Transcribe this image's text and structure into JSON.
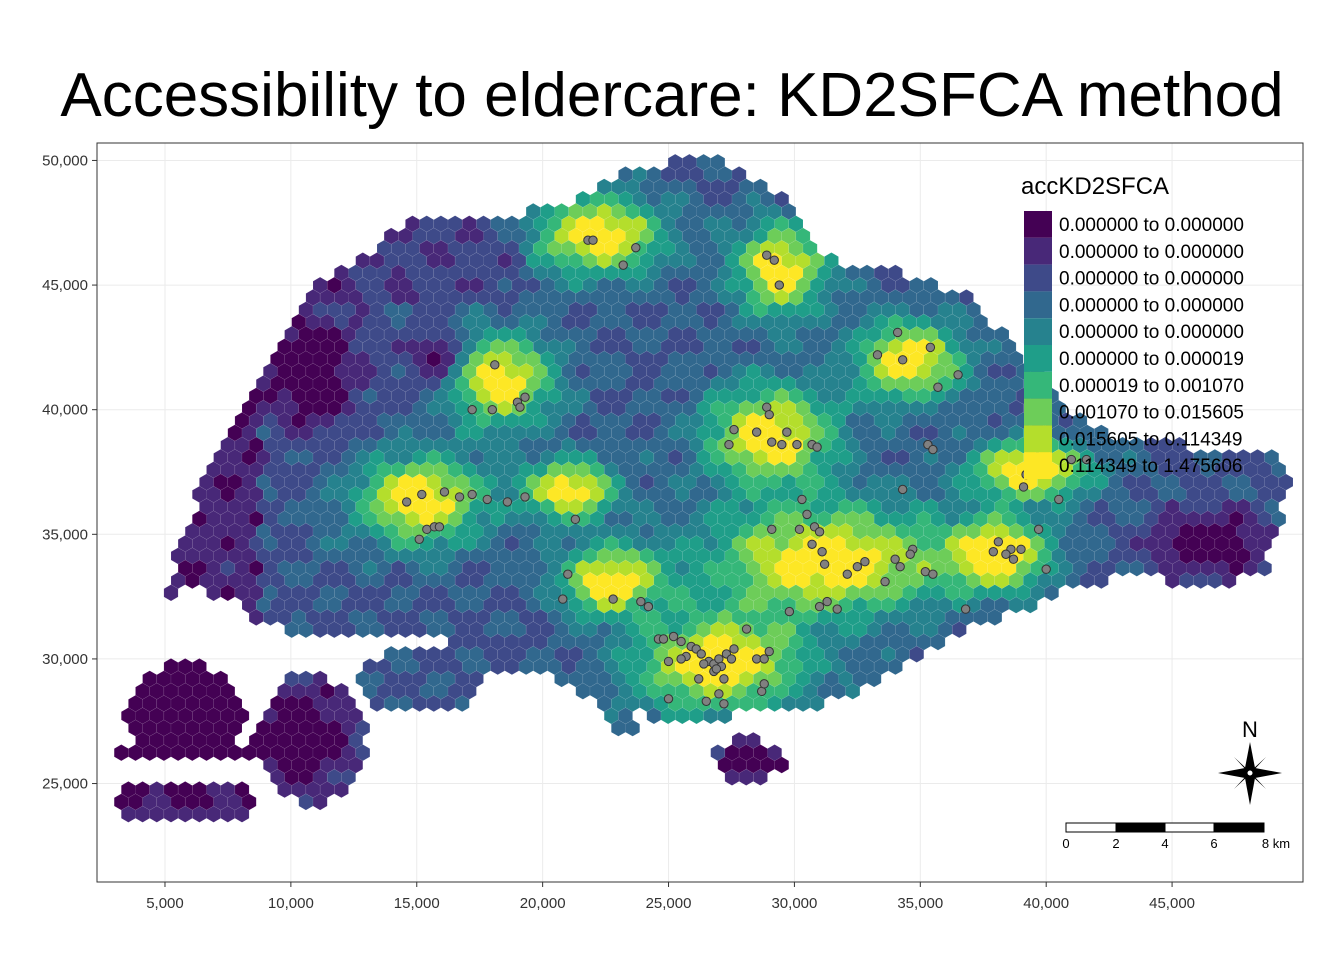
{
  "title": "Accessibility to eldercare: KD2SFCA method",
  "chart_data": {
    "type": "heatmap",
    "map_type": "hexagon grid choropleth",
    "x_ticks": [
      "5,000",
      "10,000",
      "15,000",
      "20,000",
      "25,000",
      "30,000",
      "35,000",
      "40,000",
      "45,000"
    ],
    "x_tick_values": [
      5000,
      10000,
      15000,
      20000,
      25000,
      30000,
      35000,
      40000,
      45000
    ],
    "y_ticks": [
      "50,000",
      "45,000",
      "40,000",
      "35,000",
      "30,000",
      "25,000"
    ],
    "y_tick_values": [
      50000,
      45000,
      40000,
      35000,
      30000,
      25000
    ],
    "xlim": [
      2300,
      50200
    ],
    "ylim": [
      21050,
      50700
    ],
    "grid": true,
    "legend": {
      "title": "accKD2SFCA",
      "position": "top-right",
      "classes": [
        {
          "label": "0.000000 to 0.000000",
          "color": "#440154"
        },
        {
          "label": "0.000000 to 0.000000",
          "color": "#482878"
        },
        {
          "label": "0.000000 to 0.000000",
          "color": "#3e4a89"
        },
        {
          "label": "0.000000 to 0.000000",
          "color": "#31688e"
        },
        {
          "label": "0.000000 to 0.000000",
          "color": "#26828e"
        },
        {
          "label": "0.000000 to 0.000019",
          "color": "#1f9e89"
        },
        {
          "label": "0.000019 to 0.001070",
          "color": "#35b779"
        },
        {
          "label": "0.001070 to 0.015605",
          "color": "#6dcd59"
        },
        {
          "label": "0.015605 to 0.114349",
          "color": "#b4de2c"
        },
        {
          "label": "0.114349 to 1.475606",
          "color": "#fde725"
        }
      ]
    },
    "eldercare_point_color": "#808080",
    "eldercare_points": [
      [
        21800,
        46800
      ],
      [
        22000,
        46800
      ],
      [
        23700,
        46500
      ],
      [
        23200,
        45800
      ],
      [
        28900,
        46200
      ],
      [
        29200,
        46000
      ],
      [
        29400,
        45000
      ],
      [
        34100,
        43100
      ],
      [
        35400,
        42500
      ],
      [
        33300,
        42200
      ],
      [
        34300,
        42000
      ],
      [
        36500,
        41400
      ],
      [
        35700,
        40900
      ],
      [
        18100,
        41800
      ],
      [
        18000,
        40000
      ],
      [
        17200,
        40000
      ],
      [
        19000,
        40300
      ],
      [
        19100,
        40100
      ],
      [
        19300,
        40500
      ],
      [
        28900,
        40100
      ],
      [
        29000,
        39800
      ],
      [
        27600,
        39200
      ],
      [
        28500,
        39100
      ],
      [
        29700,
        39100
      ],
      [
        29100,
        38700
      ],
      [
        29500,
        38600
      ],
      [
        30100,
        38600
      ],
      [
        30700,
        38600
      ],
      [
        30900,
        38500
      ],
      [
        27400,
        38600
      ],
      [
        35300,
        38600
      ],
      [
        35500,
        38400
      ],
      [
        39200,
        37400
      ],
      [
        39100,
        36900
      ],
      [
        40000,
        37600
      ],
      [
        40500,
        36400
      ],
      [
        41000,
        38000
      ],
      [
        41600,
        38000
      ],
      [
        34300,
        36800
      ],
      [
        14600,
        36300
      ],
      [
        15200,
        36600
      ],
      [
        16100,
        36700
      ],
      [
        16700,
        36500
      ],
      [
        17200,
        36600
      ],
      [
        17800,
        36400
      ],
      [
        18600,
        36300
      ],
      [
        19300,
        36500
      ],
      [
        15400,
        35200
      ],
      [
        15700,
        35300
      ],
      [
        15100,
        34800
      ],
      [
        15900,
        35300
      ],
      [
        21300,
        35600
      ],
      [
        29100,
        35200
      ],
      [
        30300,
        36400
      ],
      [
        30500,
        35800
      ],
      [
        30800,
        35300
      ],
      [
        31000,
        35100
      ],
      [
        30200,
        35200
      ],
      [
        30700,
        34600
      ],
      [
        31100,
        34300
      ],
      [
        31200,
        33800
      ],
      [
        32100,
        33400
      ],
      [
        34700,
        34400
      ],
      [
        34600,
        34200
      ],
      [
        34000,
        34000
      ],
      [
        32500,
        33700
      ],
      [
        32800,
        33900
      ],
      [
        33600,
        33100
      ],
      [
        34200,
        33700
      ],
      [
        35200,
        33500
      ],
      [
        35500,
        33400
      ],
      [
        38100,
        34700
      ],
      [
        37900,
        34300
      ],
      [
        38700,
        34000
      ],
      [
        38600,
        34400
      ],
      [
        39000,
        34400
      ],
      [
        38400,
        34200
      ],
      [
        39700,
        35200
      ],
      [
        40000,
        33600
      ],
      [
        36800,
        32000
      ],
      [
        21000,
        33400
      ],
      [
        20800,
        32400
      ],
      [
        22800,
        32400
      ],
      [
        23900,
        32300
      ],
      [
        24200,
        32100
      ],
      [
        29800,
        31900
      ],
      [
        31000,
        32100
      ],
      [
        31300,
        32300
      ],
      [
        31700,
        32000
      ],
      [
        28100,
        31200
      ],
      [
        29000,
        30300
      ],
      [
        24600,
        30800
      ],
      [
        24800,
        30800
      ],
      [
        25200,
        30900
      ],
      [
        25500,
        30700
      ],
      [
        25900,
        30500
      ],
      [
        26100,
        30400
      ],
      [
        26300,
        30200
      ],
      [
        26600,
        29900
      ],
      [
        26800,
        29800
      ],
      [
        27000,
        30000
      ],
      [
        27300,
        30200
      ],
      [
        27600,
        30400
      ],
      [
        27500,
        30000
      ],
      [
        27100,
        29700
      ],
      [
        26400,
        29800
      ],
      [
        26800,
        29500
      ],
      [
        26900,
        29600
      ],
      [
        25700,
        30100
      ],
      [
        25000,
        29900
      ],
      [
        25500,
        30000
      ],
      [
        26200,
        29200
      ],
      [
        27000,
        28600
      ],
      [
        27200,
        29200
      ],
      [
        28500,
        30000
      ],
      [
        28800,
        30000
      ],
      [
        25000,
        28400
      ],
      [
        26500,
        28300
      ],
      [
        27200,
        28200
      ],
      [
        28700,
        28700
      ],
      [
        28800,
        29000
      ]
    ]
  },
  "north_arrow": {
    "label": "N"
  },
  "scale_bar": {
    "labels": [
      "0",
      "2",
      "4",
      "6",
      "8 km"
    ]
  }
}
